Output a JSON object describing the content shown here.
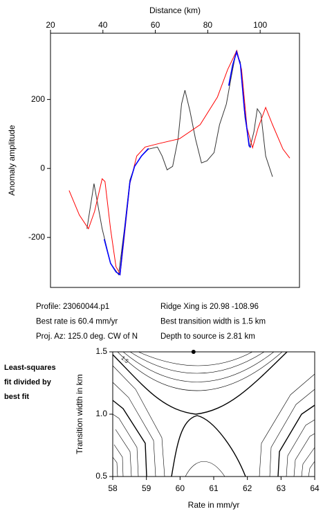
{
  "chart_data": [
    {
      "type": "line",
      "x_label": "Distance (km)",
      "y_label": "Anomaly amplitude",
      "xlim": [
        20,
        115
      ],
      "ylim": [
        -345,
        392
      ],
      "xticks": [
        20,
        40,
        60,
        80,
        100
      ],
      "yticks": [
        -200,
        0,
        200
      ],
      "series": [
        {
          "color": "#333333",
          "x": [
            33.9,
            36.6,
            39.7,
            42.9,
            46,
            48.2,
            50.3,
            52.1,
            54.7,
            57.4,
            60.8,
            62.6,
            64.5,
            66.6,
            68.7,
            70,
            71.3,
            73.2,
            75.3,
            77.6,
            79.7,
            82.4,
            84.5,
            87.1,
            89,
            90.8,
            92.4,
            94.2,
            96.1,
            97.6,
            98.9,
            100.3,
            102.1,
            104.7
          ],
          "values": [
            -175,
            -44,
            -175,
            -275,
            -308,
            -175,
            -34,
            6,
            36,
            56,
            62,
            36,
            -4,
            6,
            86,
            187,
            227,
            167,
            86,
            16,
            22,
            46,
            127,
            187,
            267,
            338,
            308,
            147,
            60,
            106,
            173,
            157,
            36,
            -24
          ]
        },
        {
          "color": "#ff0000",
          "x": [
            27.1,
            31,
            34.5,
            36.8,
            39.7,
            40.8,
            42.9,
            45,
            46.6,
            48.2,
            50.3,
            52.9,
            56.1,
            61.3,
            69.2,
            77.1,
            83.7,
            87.6,
            91.1,
            92.9,
            95,
            97.1,
            99.2,
            102.1,
            104.7,
            108.7,
            111.3
          ],
          "values": [
            -64,
            -135,
            -175,
            -125,
            -30,
            -38,
            -175,
            -285,
            -306,
            -195,
            -44,
            36,
            62,
            72,
            86,
            127,
            207,
            287,
            342,
            287,
            117,
            60,
            117,
            177,
            127,
            56,
            30
          ]
        },
        {
          "color": "#0000ff",
          "x": [
            40.5,
            42.9,
            45,
            46.5,
            48.2,
            50.3,
            52.1,
            54.7,
            57.4,
            null,
            88,
            89.5,
            91,
            92.5,
            94,
            95.8,
            96.5
          ],
          "values": [
            -205,
            -275,
            -300,
            -308,
            -185,
            -40,
            6,
            36,
            58,
            null,
            240,
            300,
            338,
            300,
            170,
            65,
            62
          ]
        }
      ],
      "annotations": [
        "Profile: 23060044.p1",
        "Best rate is 60.4 mm/yr",
        "Proj. Az: 125.0 deg. CW of N",
        "Ridge Xing is 20.98 -108.96",
        "Best transition width is 1.5 km",
        "Depth to source is   2.81 km"
      ]
    },
    {
      "type": "contour",
      "x_label": "Rate in mm/yr",
      "y_label": "Transition width in km",
      "xlim": [
        58,
        64
      ],
      "ylim": [
        0.5,
        1.5
      ],
      "xticks": [
        58,
        59,
        60,
        61,
        62,
        63,
        64
      ],
      "yticks": [
        0.5,
        {
          "value": 1,
          "label": "1.0"
        },
        1.5
      ],
      "best_fit": {
        "x": 60.4,
        "y": 1.5
      },
      "contour_label": 1.5,
      "side_label": [
        "Least-squares",
        "fit divided by",
        "best fit"
      ]
    }
  ]
}
